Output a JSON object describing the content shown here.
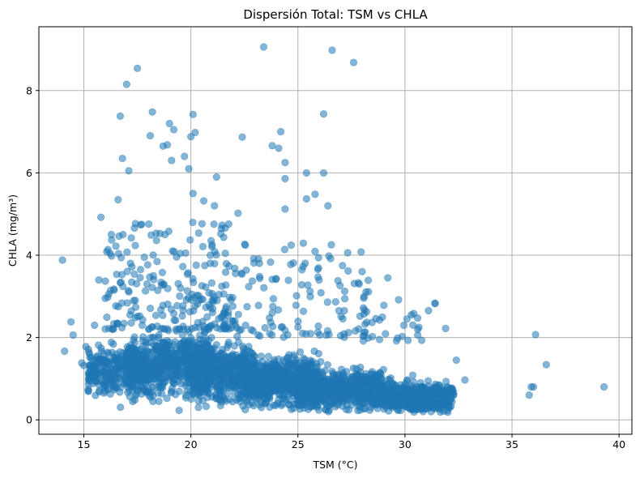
{
  "chart_data": {
    "type": "scatter",
    "title": "Dispersión Total: TSM vs CHLA",
    "xlabel": "TSM (°C)",
    "ylabel": "CHLA (mg/m³)",
    "xlim": [
      12.9,
      40.6
    ],
    "ylim": [
      -0.35,
      9.55
    ],
    "xticks": [
      15,
      20,
      25,
      30,
      35,
      40
    ],
    "yticks": [
      0,
      2,
      4,
      6,
      8
    ],
    "grid": true,
    "point_color": "#1f77b4",
    "point_opacity": 0.55,
    "notable_points": [
      {
        "x": 14.0,
        "y": 3.88
      },
      {
        "x": 14.1,
        "y": 1.67
      },
      {
        "x": 14.4,
        "y": 2.38
      },
      {
        "x": 14.5,
        "y": 2.06
      },
      {
        "x": 14.9,
        "y": 1.38
      },
      {
        "x": 15.0,
        "y": 1.32
      },
      {
        "x": 15.1,
        "y": 1.78
      },
      {
        "x": 15.5,
        "y": 2.3
      },
      {
        "x": 15.7,
        "y": 3.4
      },
      {
        "x": 15.8,
        "y": 4.92
      },
      {
        "x": 16.0,
        "y": 2.95
      },
      {
        "x": 16.3,
        "y": 3.98
      },
      {
        "x": 16.5,
        "y": 4.22
      },
      {
        "x": 16.6,
        "y": 5.35
      },
      {
        "x": 16.7,
        "y": 7.38
      },
      {
        "x": 16.8,
        "y": 6.35
      },
      {
        "x": 17.0,
        "y": 8.15
      },
      {
        "x": 17.1,
        "y": 6.05
      },
      {
        "x": 17.5,
        "y": 8.54
      },
      {
        "x": 17.7,
        "y": 4.75
      },
      {
        "x": 18.1,
        "y": 6.9
      },
      {
        "x": 18.2,
        "y": 7.48
      },
      {
        "x": 18.7,
        "y": 6.65
      },
      {
        "x": 18.9,
        "y": 6.68
      },
      {
        "x": 19.0,
        "y": 7.2
      },
      {
        "x": 19.1,
        "y": 6.3
      },
      {
        "x": 19.2,
        "y": 7.05
      },
      {
        "x": 19.7,
        "y": 6.4
      },
      {
        "x": 19.9,
        "y": 6.1
      },
      {
        "x": 20.0,
        "y": 6.88
      },
      {
        "x": 20.1,
        "y": 7.42
      },
      {
        "x": 20.2,
        "y": 6.98
      },
      {
        "x": 20.1,
        "y": 5.5
      },
      {
        "x": 20.6,
        "y": 5.32
      },
      {
        "x": 21.2,
        "y": 5.9
      },
      {
        "x": 21.1,
        "y": 5.2
      },
      {
        "x": 22.2,
        "y": 5.02
      },
      {
        "x": 22.4,
        "y": 6.87
      },
      {
        "x": 23.4,
        "y": 9.06
      },
      {
        "x": 23.8,
        "y": 6.66
      },
      {
        "x": 24.2,
        "y": 7.0
      },
      {
        "x": 24.1,
        "y": 6.6
      },
      {
        "x": 24.4,
        "y": 6.25
      },
      {
        "x": 24.4,
        "y": 5.86
      },
      {
        "x": 24.4,
        "y": 5.12
      },
      {
        "x": 25.4,
        "y": 6.0
      },
      {
        "x": 25.4,
        "y": 5.37
      },
      {
        "x": 25.8,
        "y": 5.48
      },
      {
        "x": 26.2,
        "y": 6.0
      },
      {
        "x": 26.2,
        "y": 7.43
      },
      {
        "x": 26.4,
        "y": 5.2
      },
      {
        "x": 26.6,
        "y": 8.98
      },
      {
        "x": 27.6,
        "y": 8.68
      },
      {
        "x": 28.0,
        "y": 3.6
      },
      {
        "x": 29.2,
        "y": 3.45
      },
      {
        "x": 29.7,
        "y": 2.92
      },
      {
        "x": 30.3,
        "y": 2.55
      },
      {
        "x": 30.6,
        "y": 2.2
      },
      {
        "x": 31.9,
        "y": 2.22
      },
      {
        "x": 32.4,
        "y": 1.45
      },
      {
        "x": 32.8,
        "y": 0.97
      },
      {
        "x": 35.8,
        "y": 0.6
      },
      {
        "x": 35.9,
        "y": 0.8
      },
      {
        "x": 36.0,
        "y": 0.8
      },
      {
        "x": 36.1,
        "y": 2.07
      },
      {
        "x": 36.6,
        "y": 1.34
      },
      {
        "x": 39.3,
        "y": 0.8
      }
    ],
    "dense_regions": [
      {
        "x_range": [
          15.2,
          18.0
        ],
        "y_median": 1.2,
        "y_spread": 0.75,
        "n": 320
      },
      {
        "x_range": [
          17.0,
          21.0
        ],
        "y_median": 1.35,
        "y_spread": 0.9,
        "n": 650
      },
      {
        "x_range": [
          20.0,
          23.0
        ],
        "y_median": 1.15,
        "y_spread": 0.8,
        "n": 600
      },
      {
        "x_range": [
          22.5,
          26.0
        ],
        "y_median": 0.95,
        "y_spread": 0.7,
        "n": 600
      },
      {
        "x_range": [
          25.0,
          29.0
        ],
        "y_median": 0.75,
        "y_spread": 0.6,
        "n": 650
      },
      {
        "x_range": [
          28.5,
          32.3
        ],
        "y_median": 0.55,
        "y_spread": 0.45,
        "n": 520
      }
    ],
    "sparse_regions": [
      {
        "x_range": [
          16.0,
          22.0
        ],
        "y_range": [
          2.2,
          4.8
        ],
        "n": 220
      },
      {
        "x_range": [
          21.5,
          28.5
        ],
        "y_range": [
          2.0,
          4.3
        ],
        "n": 130
      },
      {
        "x_range": [
          28.0,
          31.5
        ],
        "y_range": [
          1.9,
          3.0
        ],
        "n": 30
      }
    ]
  }
}
